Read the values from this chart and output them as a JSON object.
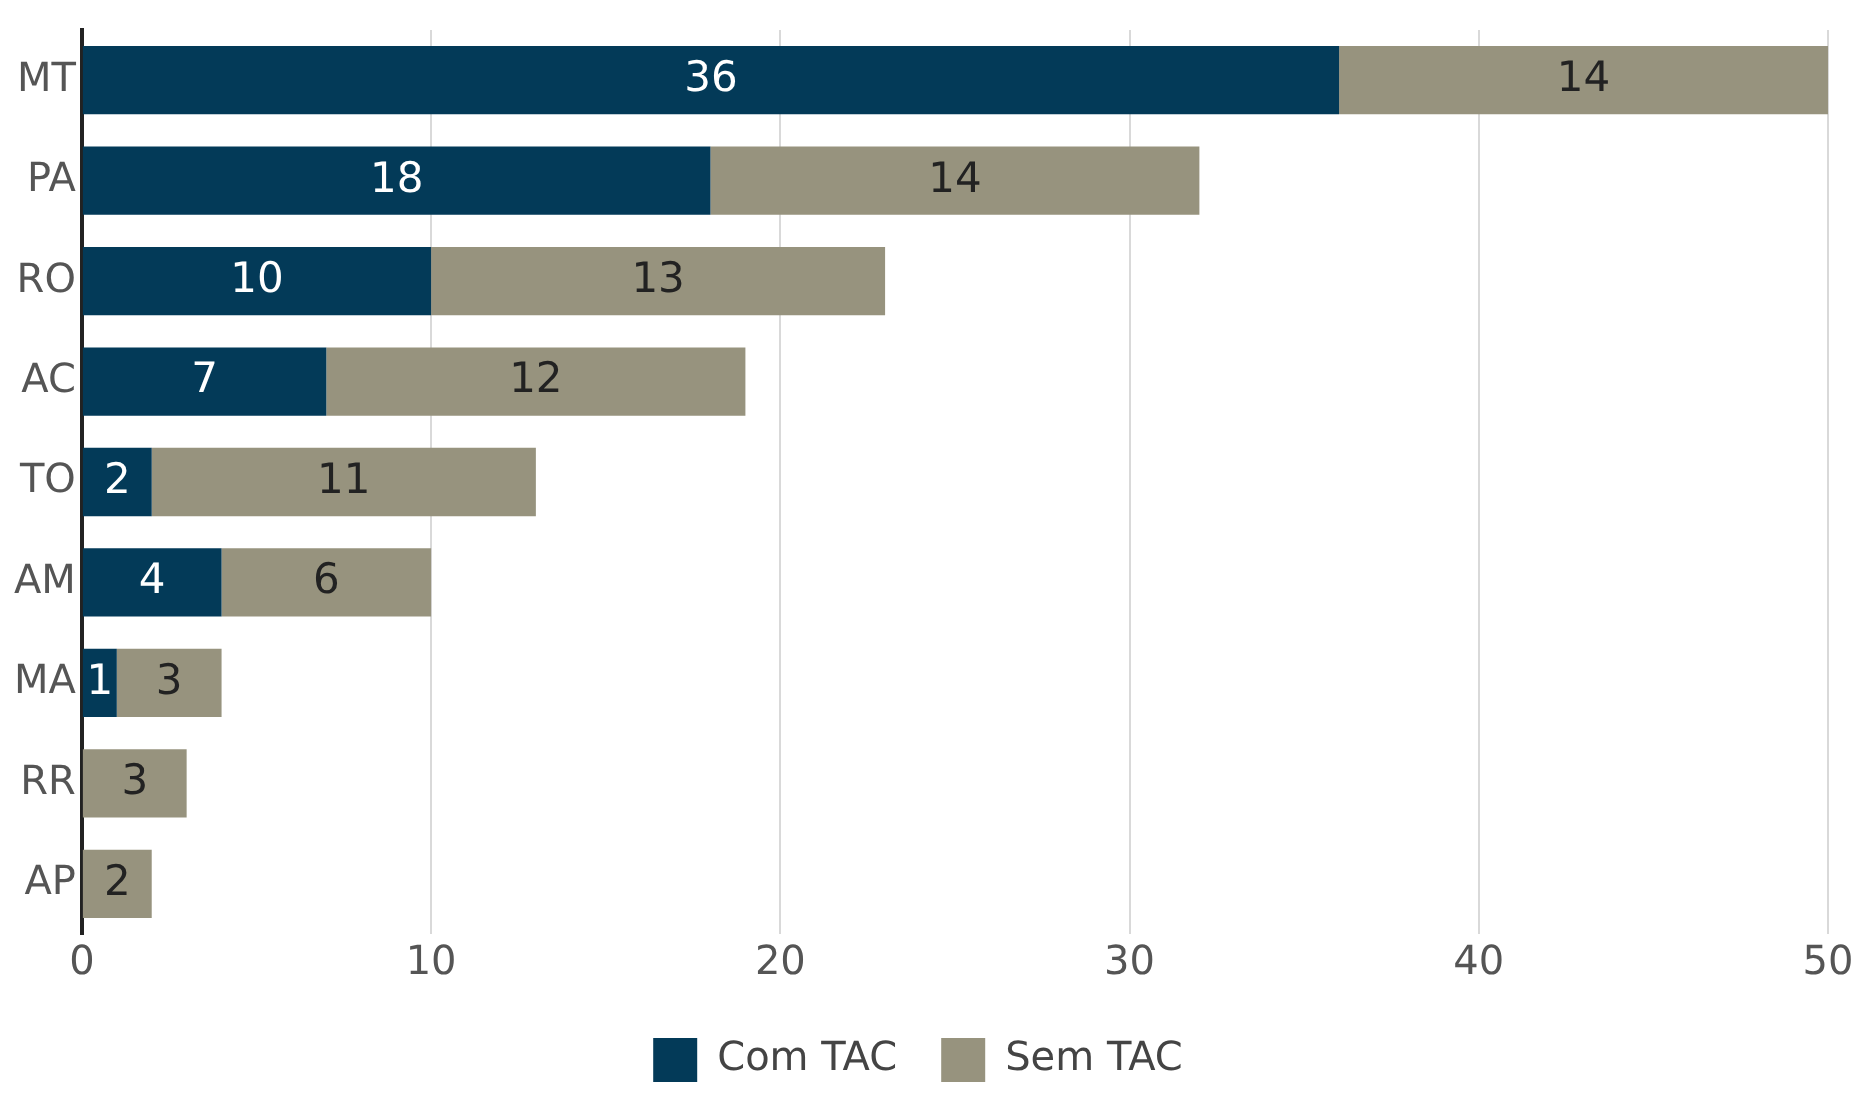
{
  "chart_data": {
    "type": "bar",
    "orientation": "horizontal",
    "stacked": true,
    "categories": [
      "MT",
      "PA",
      "RO",
      "AC",
      "TO",
      "AM",
      "MA",
      "RR",
      "AP"
    ],
    "series": [
      {
        "name": "Com TAC",
        "color": "#033a58",
        "values": [
          36,
          18,
          10,
          7,
          2,
          4,
          1,
          0,
          0
        ],
        "value_labels": [
          "36",
          "18",
          "10",
          "7",
          "2",
          "4",
          "1",
          null,
          null
        ]
      },
      {
        "name": "Sem TAC",
        "color": "#97937e",
        "values": [
          14,
          14,
          13,
          12,
          11,
          6,
          3,
          3,
          2
        ],
        "value_labels": [
          "14",
          "14",
          "13",
          "12",
          "11",
          "6",
          "3",
          "3",
          "2"
        ]
      }
    ],
    "xlim": [
      0,
      50
    ],
    "xticks": [
      0,
      10,
      20,
      30,
      40,
      50
    ],
    "grid": "x",
    "legend": "bottom"
  }
}
